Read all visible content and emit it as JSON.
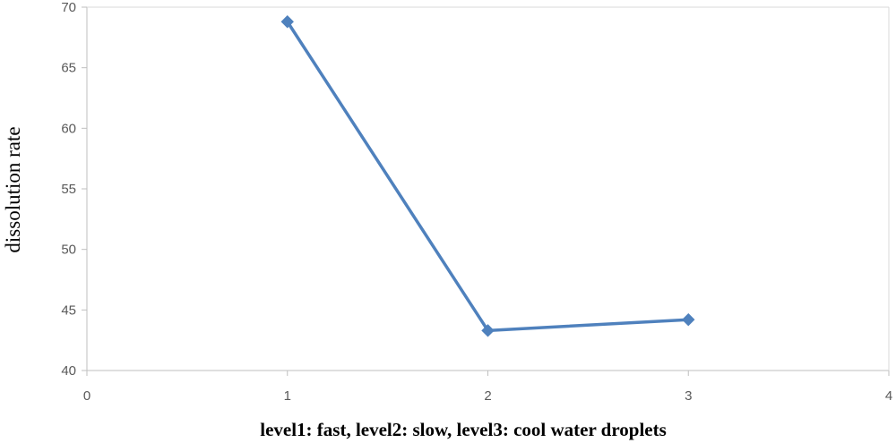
{
  "chart_data": {
    "type": "line",
    "title": "",
    "xlabel": "level1: fast, level2: slow, level3: cool water droplets",
    "ylabel": "dissolution rate",
    "xlim": [
      0,
      4
    ],
    "ylim": [
      40,
      70
    ],
    "x_ticks": [
      "0",
      "1",
      "2",
      "3",
      "4"
    ],
    "y_ticks": [
      "40",
      "45",
      "50",
      "55",
      "60",
      "65",
      "70"
    ],
    "grid": false,
    "legend": "none",
    "series": [
      {
        "color": "#4f81bd",
        "marker": "diamond",
        "x": [
          1,
          2,
          3
        ],
        "y": [
          68.8,
          43.3,
          44.2
        ]
      }
    ]
  }
}
